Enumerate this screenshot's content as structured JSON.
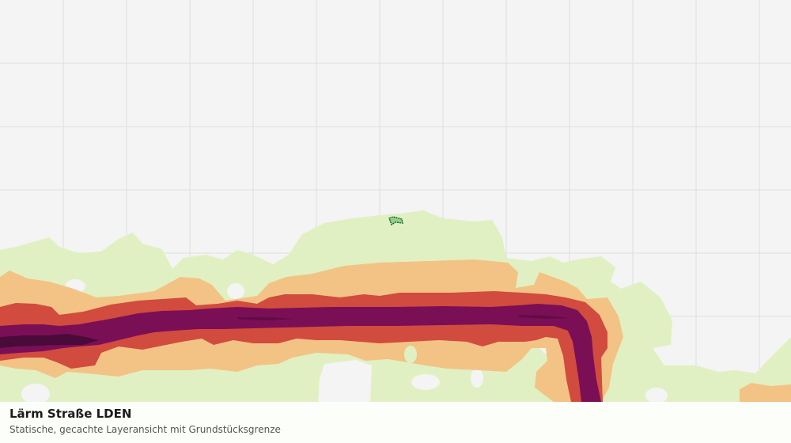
{
  "layer": {
    "title": "Lärm Straße LDEN",
    "subtitle": "Statische, gecachte Layeransicht mit Grundstücksgrenze"
  },
  "colors": {
    "background": "#f3f4f3",
    "grid": "#dedfde",
    "noise_band_1": "#e1f0c2",
    "noise_band_2": "#f3c385",
    "noise_band_3": "#d14b3e",
    "noise_band_4": "#7b0f56",
    "noise_band_5": "#4a0b3a",
    "parcel_fill": "#8fd18a",
    "parcel_outline": "#1e5a27"
  },
  "icons": {
    "parcel": "parcel-boundary-icon"
  }
}
